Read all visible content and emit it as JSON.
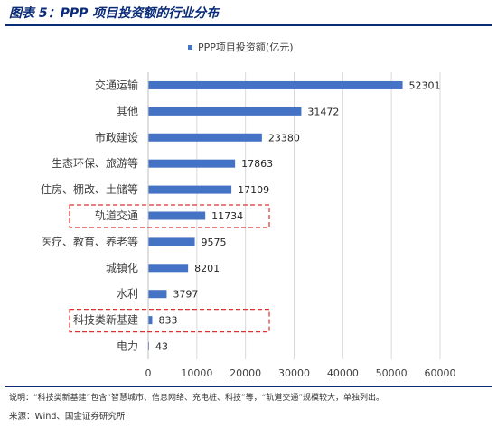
{
  "figure": {
    "title": "图表 5：PPP 项目投资额的行业分布",
    "note": "说明：“科技类新基建”包含“智慧城市、信息网络、充电桩、科技”等，“轨道交通”规模较大，单独列出。",
    "source": "来源：Wind、国金证券研究所"
  },
  "chart_data": {
    "type": "bar",
    "orientation": "horizontal",
    "title": "",
    "legend": {
      "position": "top",
      "label": "PPP项目投资额(亿元)"
    },
    "categories": [
      "交通运输",
      "其他",
      "市政建设",
      "生态环保、旅游等",
      "住房、棚改、土储等",
      "轨道交通",
      "医疗、教育、养老等",
      "城镇化",
      "水利",
      "科技类新基建",
      "电力"
    ],
    "series": [
      {
        "name": "PPP项目投资额(亿元)",
        "values": [
          52301,
          31472,
          23380,
          17863,
          17109,
          11734,
          9575,
          8201,
          3797,
          833,
          43
        ]
      }
    ],
    "xlim": [
      0,
      60000
    ],
    "xticks": [
      0,
      10000,
      20000,
      30000,
      40000,
      50000,
      60000
    ],
    "grid": true,
    "highlighted_categories": [
      "轨道交通",
      "科技类新基建"
    ],
    "colors": {
      "bar": "#4472c4",
      "grid": "#d9d9d9",
      "highlight_box": "#e03030"
    }
  }
}
